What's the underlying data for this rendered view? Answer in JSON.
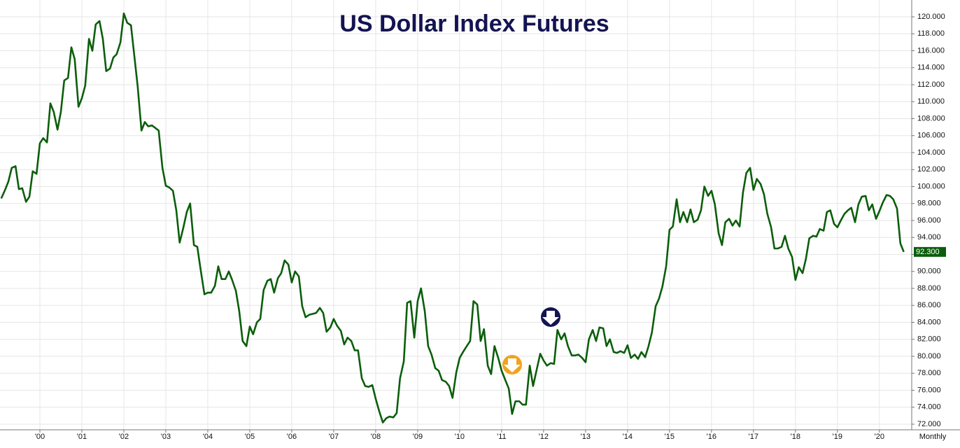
{
  "chart_data": {
    "type": "line",
    "title": "US Dollar Index Futures",
    "period_label": "Monthly",
    "current_value_label": "92.300",
    "color": "#0b5e0b",
    "x": [
      1999.08,
      1999.17,
      1999.25,
      1999.33,
      1999.42,
      1999.5,
      1999.58,
      1999.67,
      1999.75,
      1999.83,
      1999.92,
      2000,
      2000.08,
      2000.17,
      2000.25,
      2000.33,
      2000.42,
      2000.5,
      2000.58,
      2000.67,
      2000.75,
      2000.83,
      2000.92,
      2001,
      2001.08,
      2001.17,
      2001.25,
      2001.33,
      2001.42,
      2001.5,
      2001.58,
      2001.67,
      2001.75,
      2001.83,
      2001.92,
      2002,
      2002.08,
      2002.17,
      2002.25,
      2002.33,
      2002.42,
      2002.5,
      2002.58,
      2002.67,
      2002.75,
      2002.83,
      2002.92,
      2003,
      2003.08,
      2003.17,
      2003.25,
      2003.33,
      2003.42,
      2003.5,
      2003.58,
      2003.67,
      2003.75,
      2003.83,
      2003.92,
      2004,
      2004.08,
      2004.17,
      2004.25,
      2004.33,
      2004.42,
      2004.5,
      2004.58,
      2004.67,
      2004.75,
      2004.83,
      2004.92,
      2005,
      2005.08,
      2005.17,
      2005.25,
      2005.33,
      2005.42,
      2005.5,
      2005.58,
      2005.67,
      2005.75,
      2005.83,
      2005.92,
      2006,
      2006.08,
      2006.17,
      2006.25,
      2006.33,
      2006.42,
      2006.5,
      2006.58,
      2006.67,
      2006.75,
      2006.83,
      2006.92,
      2007,
      2007.08,
      2007.17,
      2007.25,
      2007.33,
      2007.42,
      2007.5,
      2007.58,
      2007.67,
      2007.75,
      2007.83,
      2007.92,
      2008,
      2008.08,
      2008.17,
      2008.25,
      2008.33,
      2008.42,
      2008.5,
      2008.58,
      2008.67,
      2008.75,
      2008.83,
      2008.92,
      2009,
      2009.08,
      2009.17,
      2009.25,
      2009.33,
      2009.42,
      2009.5,
      2009.58,
      2009.67,
      2009.75,
      2009.83,
      2009.92,
      2010,
      2010.08,
      2010.17,
      2010.25,
      2010.33,
      2010.42,
      2010.5,
      2010.58,
      2010.67,
      2010.75,
      2010.83,
      2010.92,
      2011,
      2011.08,
      2011.17,
      2011.25,
      2011.33,
      2011.42,
      2011.5,
      2011.58,
      2011.67,
      2011.75,
      2011.83,
      2011.92,
      2012,
      2012.08,
      2012.17,
      2012.25,
      2012.33,
      2012.42,
      2012.5,
      2012.58,
      2012.67,
      2012.75,
      2012.83,
      2012.92,
      2013,
      2013.08,
      2013.17,
      2013.25,
      2013.33,
      2013.42,
      2013.5,
      2013.58,
      2013.67,
      2013.75,
      2013.83,
      2013.92,
      2014,
      2014.08,
      2014.17,
      2014.25,
      2014.33,
      2014.42,
      2014.5,
      2014.58,
      2014.67,
      2014.75,
      2014.83,
      2014.92,
      2015,
      2015.08,
      2015.17,
      2015.25,
      2015.33,
      2015.42,
      2015.5,
      2015.58,
      2015.67,
      2015.75,
      2015.83,
      2015.92,
      2016,
      2016.08,
      2016.17,
      2016.25,
      2016.33,
      2016.42,
      2016.5,
      2016.58,
      2016.67,
      2016.75,
      2016.83,
      2016.92,
      2017,
      2017.08,
      2017.17,
      2017.25,
      2017.33,
      2017.42,
      2017.5,
      2017.58,
      2017.67,
      2017.75,
      2017.83,
      2017.92,
      2018,
      2018.08,
      2018.17,
      2018.25,
      2018.33,
      2018.42,
      2018.5,
      2018.58,
      2018.67,
      2018.75,
      2018.83,
      2018.92,
      2019,
      2019.08,
      2019.17,
      2019.25,
      2019.33,
      2019.42,
      2019.5,
      2019.58,
      2019.67,
      2019.75,
      2019.83,
      2019.92,
      2020,
      2020.08,
      2020.17,
      2020.25,
      2020.33,
      2020.42,
      2020.5,
      2020.58
    ],
    "values": [
      98.6,
      99.6,
      100.6,
      102.2,
      102.4,
      99.7,
      99.8,
      98.2,
      98.8,
      101.8,
      101.5,
      105.1,
      105.7,
      105.2,
      109.8,
      108.8,
      106.7,
      108.8,
      112.5,
      112.8,
      116.4,
      115.0,
      109.4,
      110.4,
      111.9,
      117.4,
      116.0,
      119.1,
      119.5,
      117.4,
      113.6,
      113.9,
      115.2,
      115.6,
      117.0,
      120.4,
      119.3,
      119.0,
      115.4,
      111.8,
      106.6,
      107.6,
      107.1,
      107.2,
      106.9,
      106.6,
      102.2,
      100.1,
      99.9,
      99.5,
      97.2,
      93.4,
      95.2,
      97.0,
      98.0,
      93.1,
      92.9,
      90.2,
      87.3,
      87.5,
      87.5,
      88.3,
      90.6,
      89.1,
      89.1,
      90.0,
      89.0,
      87.7,
      85.3,
      81.8,
      81.2,
      83.5,
      82.6,
      84.0,
      84.4,
      87.8,
      88.9,
      89.1,
      87.5,
      89.2,
      89.8,
      91.3,
      90.8,
      88.7,
      90.0,
      89.4,
      85.9,
      84.6,
      84.9,
      85.0,
      85.1,
      85.7,
      85.1,
      82.9,
      83.4,
      84.4,
      83.6,
      83.0,
      81.4,
      82.2,
      81.8,
      80.7,
      80.7,
      77.4,
      76.5,
      76.4,
      76.6,
      75.0,
      73.6,
      72.2,
      72.7,
      72.9,
      72.8,
      73.3,
      77.4,
      79.4,
      86.3,
      86.5,
      82.2,
      86.5,
      88.0,
      85.3,
      81.2,
      80.2,
      78.6,
      78.3,
      77.2,
      77.0,
      76.5,
      75.1,
      78.1,
      79.8,
      80.5,
      81.2,
      81.8,
      86.5,
      86.1,
      81.8,
      83.2,
      78.9,
      77.9,
      81.2,
      79.8,
      78.3,
      77.3,
      76.2,
      73.2,
      74.7,
      74.7,
      74.3,
      74.3,
      78.9,
      76.5,
      78.3,
      80.3,
      79.5,
      78.9,
      79.2,
      79.1,
      83.1,
      82.0,
      82.7,
      81.2,
      80.1,
      80.1,
      80.2,
      79.8,
      79.3,
      82.0,
      83.1,
      81.8,
      83.4,
      83.3,
      81.2,
      82.0,
      80.5,
      80.4,
      80.6,
      80.4,
      81.3,
      79.8,
      80.2,
      79.7,
      80.5,
      79.9,
      81.2,
      82.8,
      85.9,
      86.8,
      88.2,
      90.6,
      94.9,
      95.3,
      98.5,
      95.8,
      97.0,
      95.8,
      97.3,
      95.8,
      96.1,
      97.2,
      100.0,
      98.9,
      99.5,
      97.9,
      94.5,
      93.1,
      95.8,
      96.2,
      95.4,
      96.0,
      95.3,
      99.3,
      101.6,
      102.2,
      99.6,
      100.9,
      100.3,
      99.1,
      96.8,
      95.2,
      92.7,
      92.7,
      92.9,
      94.2,
      92.7,
      91.7,
      89.0,
      90.5,
      89.8,
      91.5,
      93.9,
      94.2,
      94.1,
      95.0,
      94.8,
      97.0,
      97.2,
      95.6,
      95.2,
      96.0,
      96.8,
      97.2,
      97.5,
      95.8,
      97.9,
      98.8,
      98.9,
      97.2,
      97.9,
      96.2,
      97.1,
      98.1,
      99.0,
      98.9,
      98.5,
      97.4,
      93.3,
      92.3
    ],
    "xlim": [
      1999.05,
      2020.77
    ],
    "ylim": [
      71.34,
      121.98
    ],
    "xticks": [
      {
        "value": 2000,
        "label": "'00"
      },
      {
        "value": 2001,
        "label": "'01"
      },
      {
        "value": 2002,
        "label": "'02"
      },
      {
        "value": 2003,
        "label": "'03"
      },
      {
        "value": 2004,
        "label": "'04"
      },
      {
        "value": 2005,
        "label": "'05"
      },
      {
        "value": 2006,
        "label": "'06"
      },
      {
        "value": 2007,
        "label": "'07"
      },
      {
        "value": 2008,
        "label": "'08"
      },
      {
        "value": 2009,
        "label": "'09"
      },
      {
        "value": 2010,
        "label": "'10"
      },
      {
        "value": 2011,
        "label": "'11"
      },
      {
        "value": 2012,
        "label": "'12"
      },
      {
        "value": 2013,
        "label": "'13"
      },
      {
        "value": 2014,
        "label": "'14"
      },
      {
        "value": 2015,
        "label": "'15"
      },
      {
        "value": 2016,
        "label": "'16"
      },
      {
        "value": 2017,
        "label": "'17"
      },
      {
        "value": 2018,
        "label": "'18"
      },
      {
        "value": 2019,
        "label": "'19"
      },
      {
        "value": 2020,
        "label": "'20"
      }
    ],
    "yticks": [
      {
        "value": 72,
        "label": "72.000"
      },
      {
        "value": 74,
        "label": "74.000"
      },
      {
        "value": 76,
        "label": "76.000"
      },
      {
        "value": 78,
        "label": "78.000"
      },
      {
        "value": 80,
        "label": "80.000"
      },
      {
        "value": 82,
        "label": "82.000"
      },
      {
        "value": 84,
        "label": "84.000"
      },
      {
        "value": 86,
        "label": "86.000"
      },
      {
        "value": 88,
        "label": "88.000"
      },
      {
        "value": 90,
        "label": "90.000"
      },
      {
        "value": 92,
        "label": "92.000"
      },
      {
        "value": 94,
        "label": "94.000"
      },
      {
        "value": 96,
        "label": "96.000"
      },
      {
        "value": 98,
        "label": "98.000"
      },
      {
        "value": 100,
        "label": "100.000"
      },
      {
        "value": 102,
        "label": "102.000"
      },
      {
        "value": 104,
        "label": "104.000"
      },
      {
        "value": 106,
        "label": "106.000"
      },
      {
        "value": 108,
        "label": "108.000"
      },
      {
        "value": 110,
        "label": "110.000"
      },
      {
        "value": 112,
        "label": "112.000"
      },
      {
        "value": 114,
        "label": "114.000"
      },
      {
        "value": 116,
        "label": "116.000"
      },
      {
        "value": 118,
        "label": "118.000"
      },
      {
        "value": 120,
        "label": "120.000"
      }
    ],
    "grid": true
  }
}
